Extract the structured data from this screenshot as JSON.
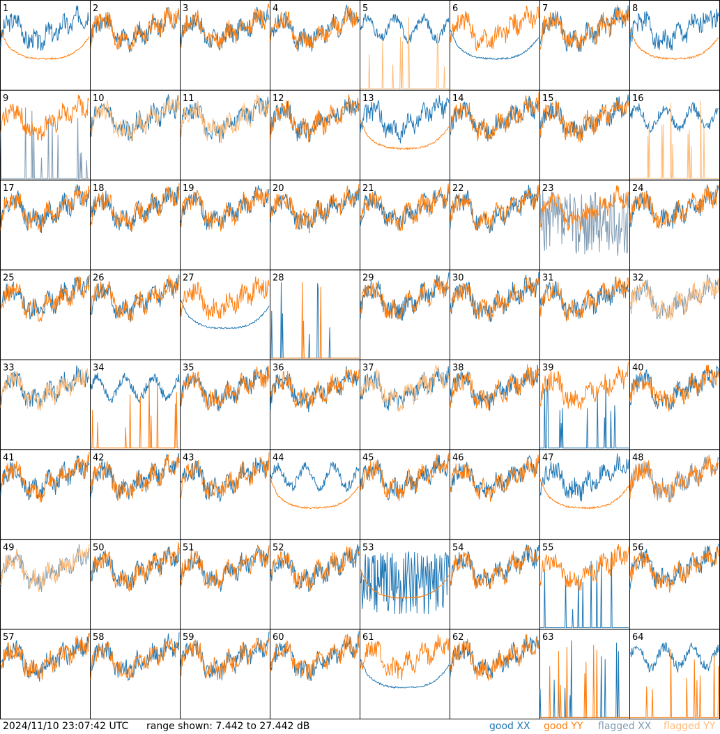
{
  "footer": {
    "timestamp": "2024/11/10 23:07:42 UTC",
    "range": "range shown: 7.442 to 27.442 dB"
  },
  "legend": {
    "good_xx": "good XX",
    "good_yy": "good YY",
    "flagged_xx": "flagged XX",
    "flagged_yy": "flagged YY"
  },
  "colors": {
    "good_xx": "#1f77b4",
    "good_yy": "#ff7f0e",
    "flagged_xx": "#7f9bb3",
    "flagged_yy": "#ffbb78"
  },
  "chart_data": {
    "type": "line",
    "grid": {
      "rows": 8,
      "cols": 8
    },
    "ylim": [
      7.442,
      27.442
    ],
    "y_unit": "dB",
    "panels": [
      {
        "id": "1",
        "xx": "good",
        "yy": "good",
        "xx_shape": "normal",
        "yy_shape": "smooth"
      },
      {
        "id": "2",
        "xx": "good",
        "yy": "good",
        "xx_shape": "normal",
        "yy_shape": "normal"
      },
      {
        "id": "3",
        "xx": "good",
        "yy": "good",
        "xx_shape": "normal",
        "yy_shape": "normal"
      },
      {
        "id": "4",
        "xx": "good",
        "yy": "good",
        "xx_shape": "normal",
        "yy_shape": "normal"
      },
      {
        "id": "5",
        "xx": "good",
        "yy": "flagged",
        "xx_shape": "high",
        "yy_shape": "spikes"
      },
      {
        "id": "6",
        "xx": "good",
        "yy": "good",
        "xx_shape": "smooth",
        "yy_shape": "normal"
      },
      {
        "id": "7",
        "xx": "good",
        "yy": "good",
        "xx_shape": "normal",
        "yy_shape": "normal"
      },
      {
        "id": "8",
        "xx": "good",
        "yy": "good",
        "xx_shape": "normal",
        "yy_shape": "smooth"
      },
      {
        "id": "9",
        "xx": "flagged",
        "yy": "good",
        "xx_shape": "spikes",
        "yy_shape": "normal"
      },
      {
        "id": "10",
        "xx": "good",
        "yy": "flagged",
        "xx_shape": "normal",
        "yy_shape": "normal"
      },
      {
        "id": "11",
        "xx": "good",
        "yy": "flagged",
        "xx_shape": "normal",
        "yy_shape": "normal"
      },
      {
        "id": "12",
        "xx": "good",
        "yy": "good",
        "xx_shape": "normal",
        "yy_shape": "normal"
      },
      {
        "id": "13",
        "xx": "good",
        "yy": "good",
        "xx_shape": "normal",
        "yy_shape": "smooth"
      },
      {
        "id": "14",
        "xx": "good",
        "yy": "good",
        "xx_shape": "normal",
        "yy_shape": "normal"
      },
      {
        "id": "15",
        "xx": "good",
        "yy": "good",
        "xx_shape": "normal",
        "yy_shape": "normal"
      },
      {
        "id": "16",
        "xx": "good",
        "yy": "flagged",
        "xx_shape": "high",
        "yy_shape": "spikes"
      },
      {
        "id": "17",
        "xx": "good",
        "yy": "good",
        "xx_shape": "normal",
        "yy_shape": "normal"
      },
      {
        "id": "18",
        "xx": "good",
        "yy": "good",
        "xx_shape": "normal",
        "yy_shape": "normal"
      },
      {
        "id": "19",
        "xx": "good",
        "yy": "good",
        "xx_shape": "normal",
        "yy_shape": "normal"
      },
      {
        "id": "20",
        "xx": "good",
        "yy": "good",
        "xx_shape": "normal",
        "yy_shape": "normal"
      },
      {
        "id": "21",
        "xx": "good",
        "yy": "good",
        "xx_shape": "normal",
        "yy_shape": "normal"
      },
      {
        "id": "22",
        "xx": "good",
        "yy": "good",
        "xx_shape": "normal",
        "yy_shape": "normal"
      },
      {
        "id": "23",
        "xx": "flagged",
        "yy": "good",
        "xx_shape": "noisy",
        "yy_shape": "normal"
      },
      {
        "id": "24",
        "xx": "good",
        "yy": "good",
        "xx_shape": "normal",
        "yy_shape": "normal"
      },
      {
        "id": "25",
        "xx": "good",
        "yy": "good",
        "xx_shape": "normal",
        "yy_shape": "normal"
      },
      {
        "id": "26",
        "xx": "good",
        "yy": "good",
        "xx_shape": "normal",
        "yy_shape": "normal"
      },
      {
        "id": "27",
        "xx": "good",
        "yy": "good",
        "xx_shape": "smooth",
        "yy_shape": "normal"
      },
      {
        "id": "28",
        "xx": "good",
        "yy": "good",
        "xx_shape": "spikes",
        "yy_shape": "spikes"
      },
      {
        "id": "29",
        "xx": "good",
        "yy": "good",
        "xx_shape": "normal",
        "yy_shape": "normal"
      },
      {
        "id": "30",
        "xx": "good",
        "yy": "good",
        "xx_shape": "normal",
        "yy_shape": "normal"
      },
      {
        "id": "31",
        "xx": "good",
        "yy": "good",
        "xx_shape": "normal",
        "yy_shape": "normal"
      },
      {
        "id": "32",
        "xx": "flagged",
        "yy": "flagged",
        "xx_shape": "normal",
        "yy_shape": "normal"
      },
      {
        "id": "33",
        "xx": "good",
        "yy": "flagged",
        "xx_shape": "normal",
        "yy_shape": "normal"
      },
      {
        "id": "34",
        "xx": "good",
        "yy": "good",
        "xx_shape": "high",
        "yy_shape": "spikes"
      },
      {
        "id": "35",
        "xx": "good",
        "yy": "good",
        "xx_shape": "normal",
        "yy_shape": "normal"
      },
      {
        "id": "36",
        "xx": "good",
        "yy": "good",
        "xx_shape": "normal",
        "yy_shape": "normal"
      },
      {
        "id": "37",
        "xx": "good",
        "yy": "flagged",
        "xx_shape": "normal",
        "yy_shape": "normal"
      },
      {
        "id": "38",
        "xx": "good",
        "yy": "good",
        "xx_shape": "normal",
        "yy_shape": "normal"
      },
      {
        "id": "39",
        "xx": "good",
        "yy": "good",
        "xx_shape": "spikes",
        "yy_shape": "normal"
      },
      {
        "id": "40",
        "xx": "good",
        "yy": "good",
        "xx_shape": "normal",
        "yy_shape": "normal"
      },
      {
        "id": "41",
        "xx": "good",
        "yy": "good",
        "xx_shape": "normal",
        "yy_shape": "normal"
      },
      {
        "id": "42",
        "xx": "good",
        "yy": "good",
        "xx_shape": "normal",
        "yy_shape": "normal"
      },
      {
        "id": "43",
        "xx": "good",
        "yy": "good",
        "xx_shape": "normal",
        "yy_shape": "normal"
      },
      {
        "id": "44",
        "xx": "good",
        "yy": "good",
        "xx_shape": "high",
        "yy_shape": "smooth"
      },
      {
        "id": "45",
        "xx": "good",
        "yy": "good",
        "xx_shape": "normal",
        "yy_shape": "normal"
      },
      {
        "id": "46",
        "xx": "good",
        "yy": "good",
        "xx_shape": "normal",
        "yy_shape": "normal"
      },
      {
        "id": "47",
        "xx": "good",
        "yy": "good",
        "xx_shape": "normal",
        "yy_shape": "smooth"
      },
      {
        "id": "48",
        "xx": "flagged",
        "yy": "good",
        "xx_shape": "normal",
        "yy_shape": "normal"
      },
      {
        "id": "49",
        "xx": "flagged",
        "yy": "flagged",
        "xx_shape": "normal",
        "yy_shape": "normal"
      },
      {
        "id": "50",
        "xx": "good",
        "yy": "good",
        "xx_shape": "normal",
        "yy_shape": "normal"
      },
      {
        "id": "51",
        "xx": "good",
        "yy": "good",
        "xx_shape": "normal",
        "yy_shape": "normal"
      },
      {
        "id": "52",
        "xx": "good",
        "yy": "good",
        "xx_shape": "normal",
        "yy_shape": "normal"
      },
      {
        "id": "53",
        "xx": "good",
        "yy": "good",
        "xx_shape": "noisy",
        "yy_shape": "smooth"
      },
      {
        "id": "54",
        "xx": "good",
        "yy": "good",
        "xx_shape": "normal",
        "yy_shape": "normal"
      },
      {
        "id": "55",
        "xx": "good",
        "yy": "good",
        "xx_shape": "spikes",
        "yy_shape": "normal"
      },
      {
        "id": "56",
        "xx": "good",
        "yy": "good",
        "xx_shape": "normal",
        "yy_shape": "normal"
      },
      {
        "id": "57",
        "xx": "good",
        "yy": "good",
        "xx_shape": "normal",
        "yy_shape": "normal"
      },
      {
        "id": "58",
        "xx": "good",
        "yy": "good",
        "xx_shape": "normal",
        "yy_shape": "normal"
      },
      {
        "id": "59",
        "xx": "good",
        "yy": "good",
        "xx_shape": "normal",
        "yy_shape": "normal"
      },
      {
        "id": "60",
        "xx": "good",
        "yy": "good",
        "xx_shape": "normal",
        "yy_shape": "normal"
      },
      {
        "id": "61",
        "xx": "good",
        "yy": "good",
        "xx_shape": "smooth",
        "yy_shape": "normal"
      },
      {
        "id": "62",
        "xx": "good",
        "yy": "good",
        "xx_shape": "normal",
        "yy_shape": "normal"
      },
      {
        "id": "63",
        "xx": "good",
        "yy": "good",
        "xx_shape": "spikes",
        "yy_shape": "spikes"
      },
      {
        "id": "64",
        "xx": "good",
        "yy": "good",
        "xx_shape": "high",
        "yy_shape": "spikes"
      }
    ]
  }
}
